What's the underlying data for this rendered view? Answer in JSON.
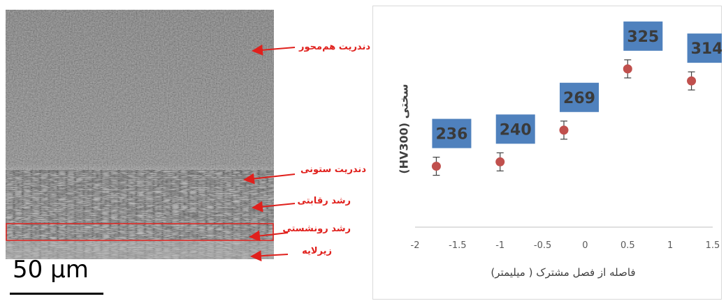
{
  "micrograph": {
    "labels": [
      "دندریت هم‌محور",
      "دندریت ستونی",
      "رشد رقابتی",
      "رشد رونشستی",
      "زیرلایه"
    ],
    "scale_bar": "50 μm",
    "label_color": "#e0201c"
  },
  "chart_data": {
    "type": "scatter",
    "x": [
      -1.75,
      -1.0,
      -0.25,
      0.5,
      1.25
    ],
    "values": [
      236,
      240,
      269,
      325,
      314
    ],
    "data_labels": [
      "236",
      "240",
      "269",
      "325",
      "314"
    ],
    "xlabel": "فاصله از فصل مشترک ( میلیمتر)",
    "ylabel": "سختی (HV300)",
    "xlim": [
      -2,
      1.5
    ],
    "x_ticks": [
      "-2",
      "-1.5",
      "-1",
      "-0.5",
      "0",
      "0.5",
      "1",
      "1.5"
    ],
    "error_bars": true,
    "grid": false,
    "marker_color": "#c0504d",
    "label_box_color": "#4f81bd"
  }
}
